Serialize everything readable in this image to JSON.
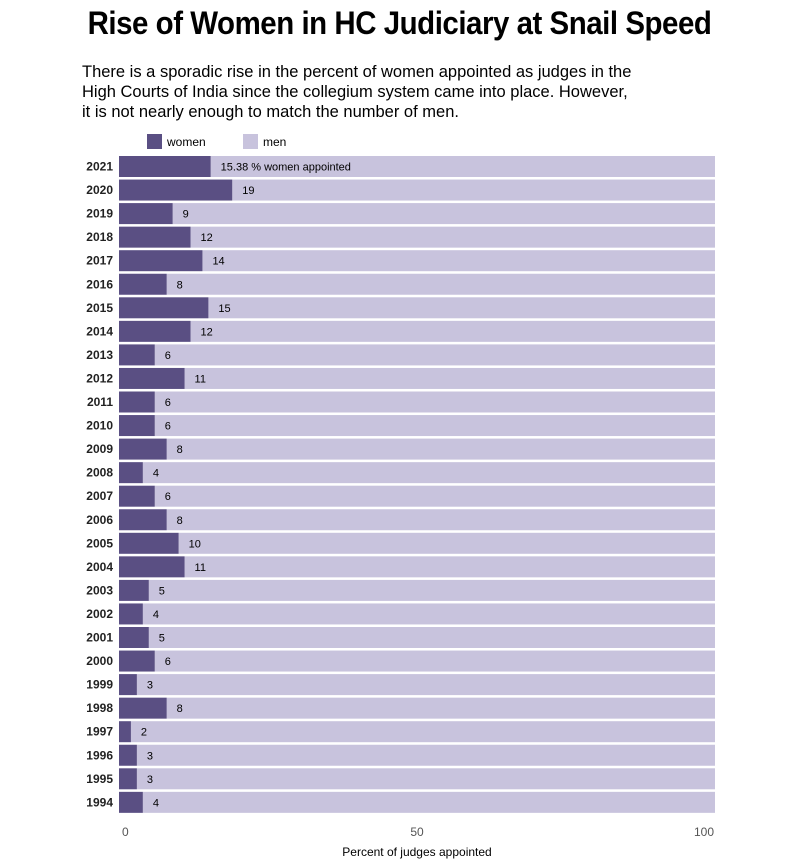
{
  "title": "Rise of Women in HC Judiciary at Snail Speed",
  "subtitle_lines": [
    "There is a sporadic rise in the percent of women appointed as judges in the",
    "High Courts of India since the collegium system came into place. However,",
    "it is not nearly enough to match the number of men."
  ],
  "legend": [
    {
      "label": "women",
      "color": "#5a4f83"
    },
    {
      "label": "men",
      "color": "#c8c3dd"
    }
  ],
  "chart_data": {
    "type": "bar",
    "orientation": "horizontal",
    "stacked": true,
    "categories": [
      "2021",
      "2020",
      "2019",
      "2018",
      "2017",
      "2016",
      "2015",
      "2014",
      "2013",
      "2012",
      "2011",
      "2010",
      "2009",
      "2008",
      "2007",
      "2006",
      "2005",
      "2004",
      "2003",
      "2002",
      "2001",
      "2000",
      "1999",
      "1998",
      "1997",
      "1996",
      "1995",
      "1994"
    ],
    "series": [
      {
        "name": "women",
        "color": "#5a4f83",
        "values": [
          15.38,
          19,
          9,
          12,
          14,
          8,
          15,
          12,
          6,
          11,
          6,
          6,
          8,
          4,
          6,
          8,
          10,
          11,
          5,
          4,
          5,
          6,
          3,
          8,
          2,
          3,
          3,
          4
        ]
      },
      {
        "name": "men",
        "color": "#c8c3dd",
        "values": [
          84.62,
          81,
          91,
          88,
          86,
          92,
          85,
          88,
          94,
          89,
          94,
          94,
          92,
          96,
          94,
          92,
          90,
          89,
          95,
          96,
          95,
          94,
          97,
          92,
          98,
          97,
          97,
          96
        ]
      }
    ],
    "data_labels": [
      "15.38 % women appointed",
      "19",
      "9",
      "12",
      "14",
      "8",
      "15",
      "12",
      "6",
      "11",
      "6",
      "6",
      "8",
      "4",
      "6",
      "8",
      "10",
      "11",
      "5",
      "4",
      "5",
      "6",
      "3",
      "8",
      "2",
      "3",
      "3",
      "4"
    ],
    "xlabel": "Percent of judges appointed",
    "ylabel": "",
    "xlim": [
      0,
      100
    ],
    "xticks": [
      0,
      50,
      100
    ],
    "grid": false,
    "legend_position": "top-left"
  }
}
